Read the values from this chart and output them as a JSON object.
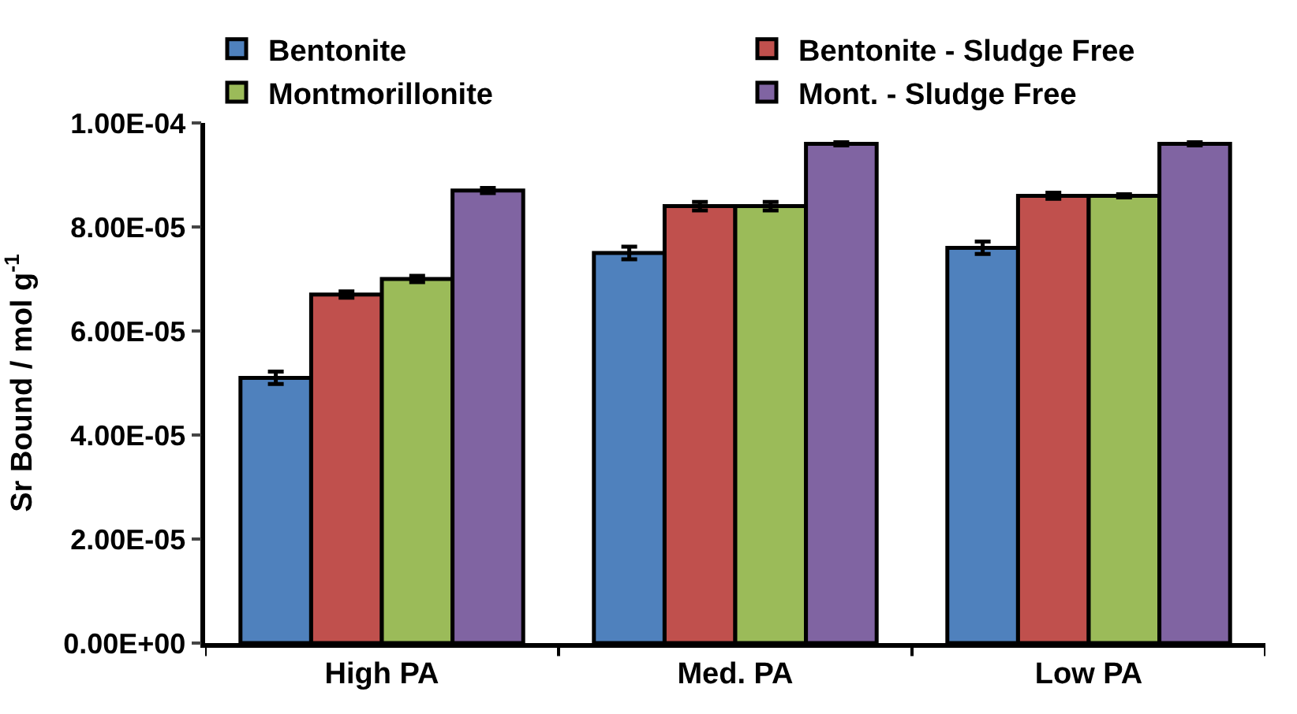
{
  "chart_data": {
    "type": "bar",
    "ylabel": "Sr Bound / mol g$^{-1}$",
    "categories": [
      "High PA",
      "Med. PA",
      "Low PA"
    ],
    "series": [
      {
        "name": "Bentonite",
        "color": "#4f81bd",
        "values": [
          5.1e-05,
          7.5e-05,
          7.6e-05
        ],
        "errors": [
          1.2e-06,
          1.2e-06,
          1.2e-06
        ]
      },
      {
        "name": "Bentonite - Sludge Free",
        "color": "#c0504d",
        "values": [
          6.7e-05,
          8.4e-05,
          8.6e-05
        ],
        "errors": [
          6e-07,
          8e-07,
          6e-07
        ]
      },
      {
        "name": "Montmorillonite",
        "color": "#9bbb59",
        "values": [
          7e-05,
          8.4e-05,
          8.6e-05
        ],
        "errors": [
          6e-07,
          8e-07,
          3e-07
        ]
      },
      {
        "name": "Mont. - Sludge Free",
        "color": "#8064a2",
        "values": [
          8.7e-05,
          9.6e-05,
          9.6e-05
        ],
        "errors": [
          5e-07,
          3e-07,
          3e-07
        ]
      }
    ],
    "ylim": [
      0,
      0.0001
    ],
    "yticks": [
      {
        "value": 0,
        "label": "0.00E+00"
      },
      {
        "value": 2e-05,
        "label": "2.00E-05"
      },
      {
        "value": 4e-05,
        "label": "4.00E-05"
      },
      {
        "value": 6e-05,
        "label": "6.00E-05"
      },
      {
        "value": 8e-05,
        "label": "8.00E-05"
      },
      {
        "value": 0.0001,
        "label": "1.00E-04"
      }
    ],
    "legend": "top"
  }
}
